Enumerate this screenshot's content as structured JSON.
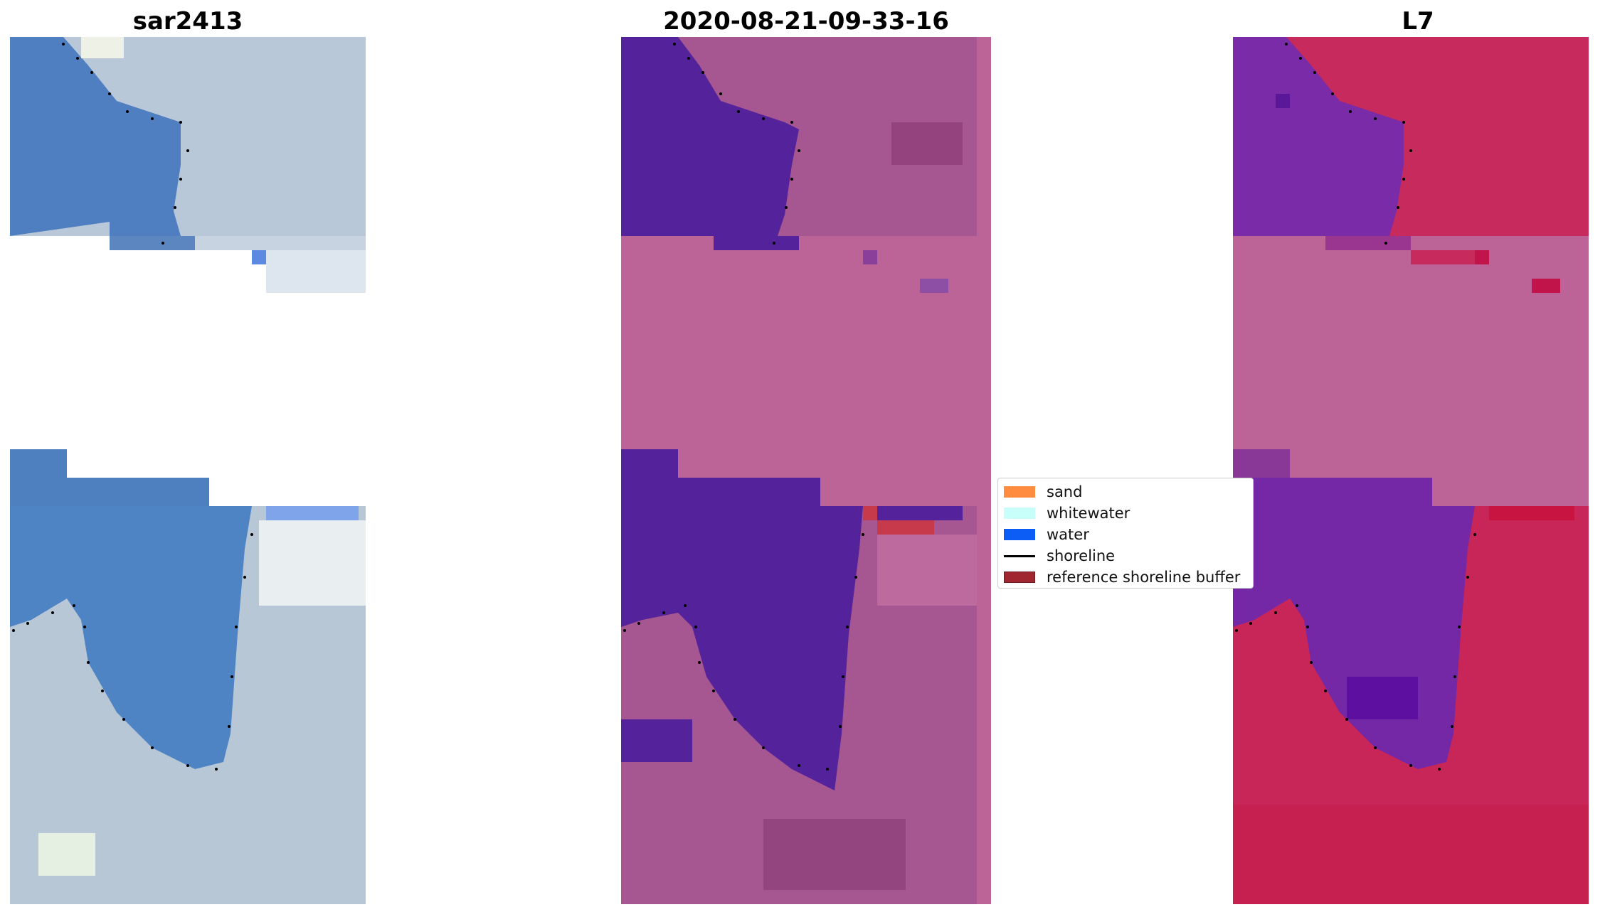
{
  "panels": [
    {
      "title": "sar2413"
    },
    {
      "title": "2020-08-21-09-33-16"
    },
    {
      "title": "L7"
    }
  ],
  "legend": {
    "items": [
      {
        "label": "sand",
        "color": "#ff8c3f",
        "kind": "patch"
      },
      {
        "label": "whitewater",
        "color": "#c8fffb",
        "kind": "patch"
      },
      {
        "label": "water",
        "color": "#0b5df5",
        "kind": "patch"
      },
      {
        "label": "shoreline",
        "color": "#000000",
        "kind": "line"
      },
      {
        "label": "reference shoreline buffer",
        "color": "#a0272f",
        "kind": "patch"
      }
    ]
  },
  "colors": {
    "rgb_water": "#4f7fc0",
    "rgb_land": "#b7c6d6",
    "class_water": "#54229a",
    "class_land": "#a65690",
    "class_nodata": "#bc6497",
    "class_buffer": "#c63a4c",
    "ndwi_water": "#7428a5",
    "ndwi_land": "#c82558",
    "ndwi_nodata": "#bc6497"
  }
}
